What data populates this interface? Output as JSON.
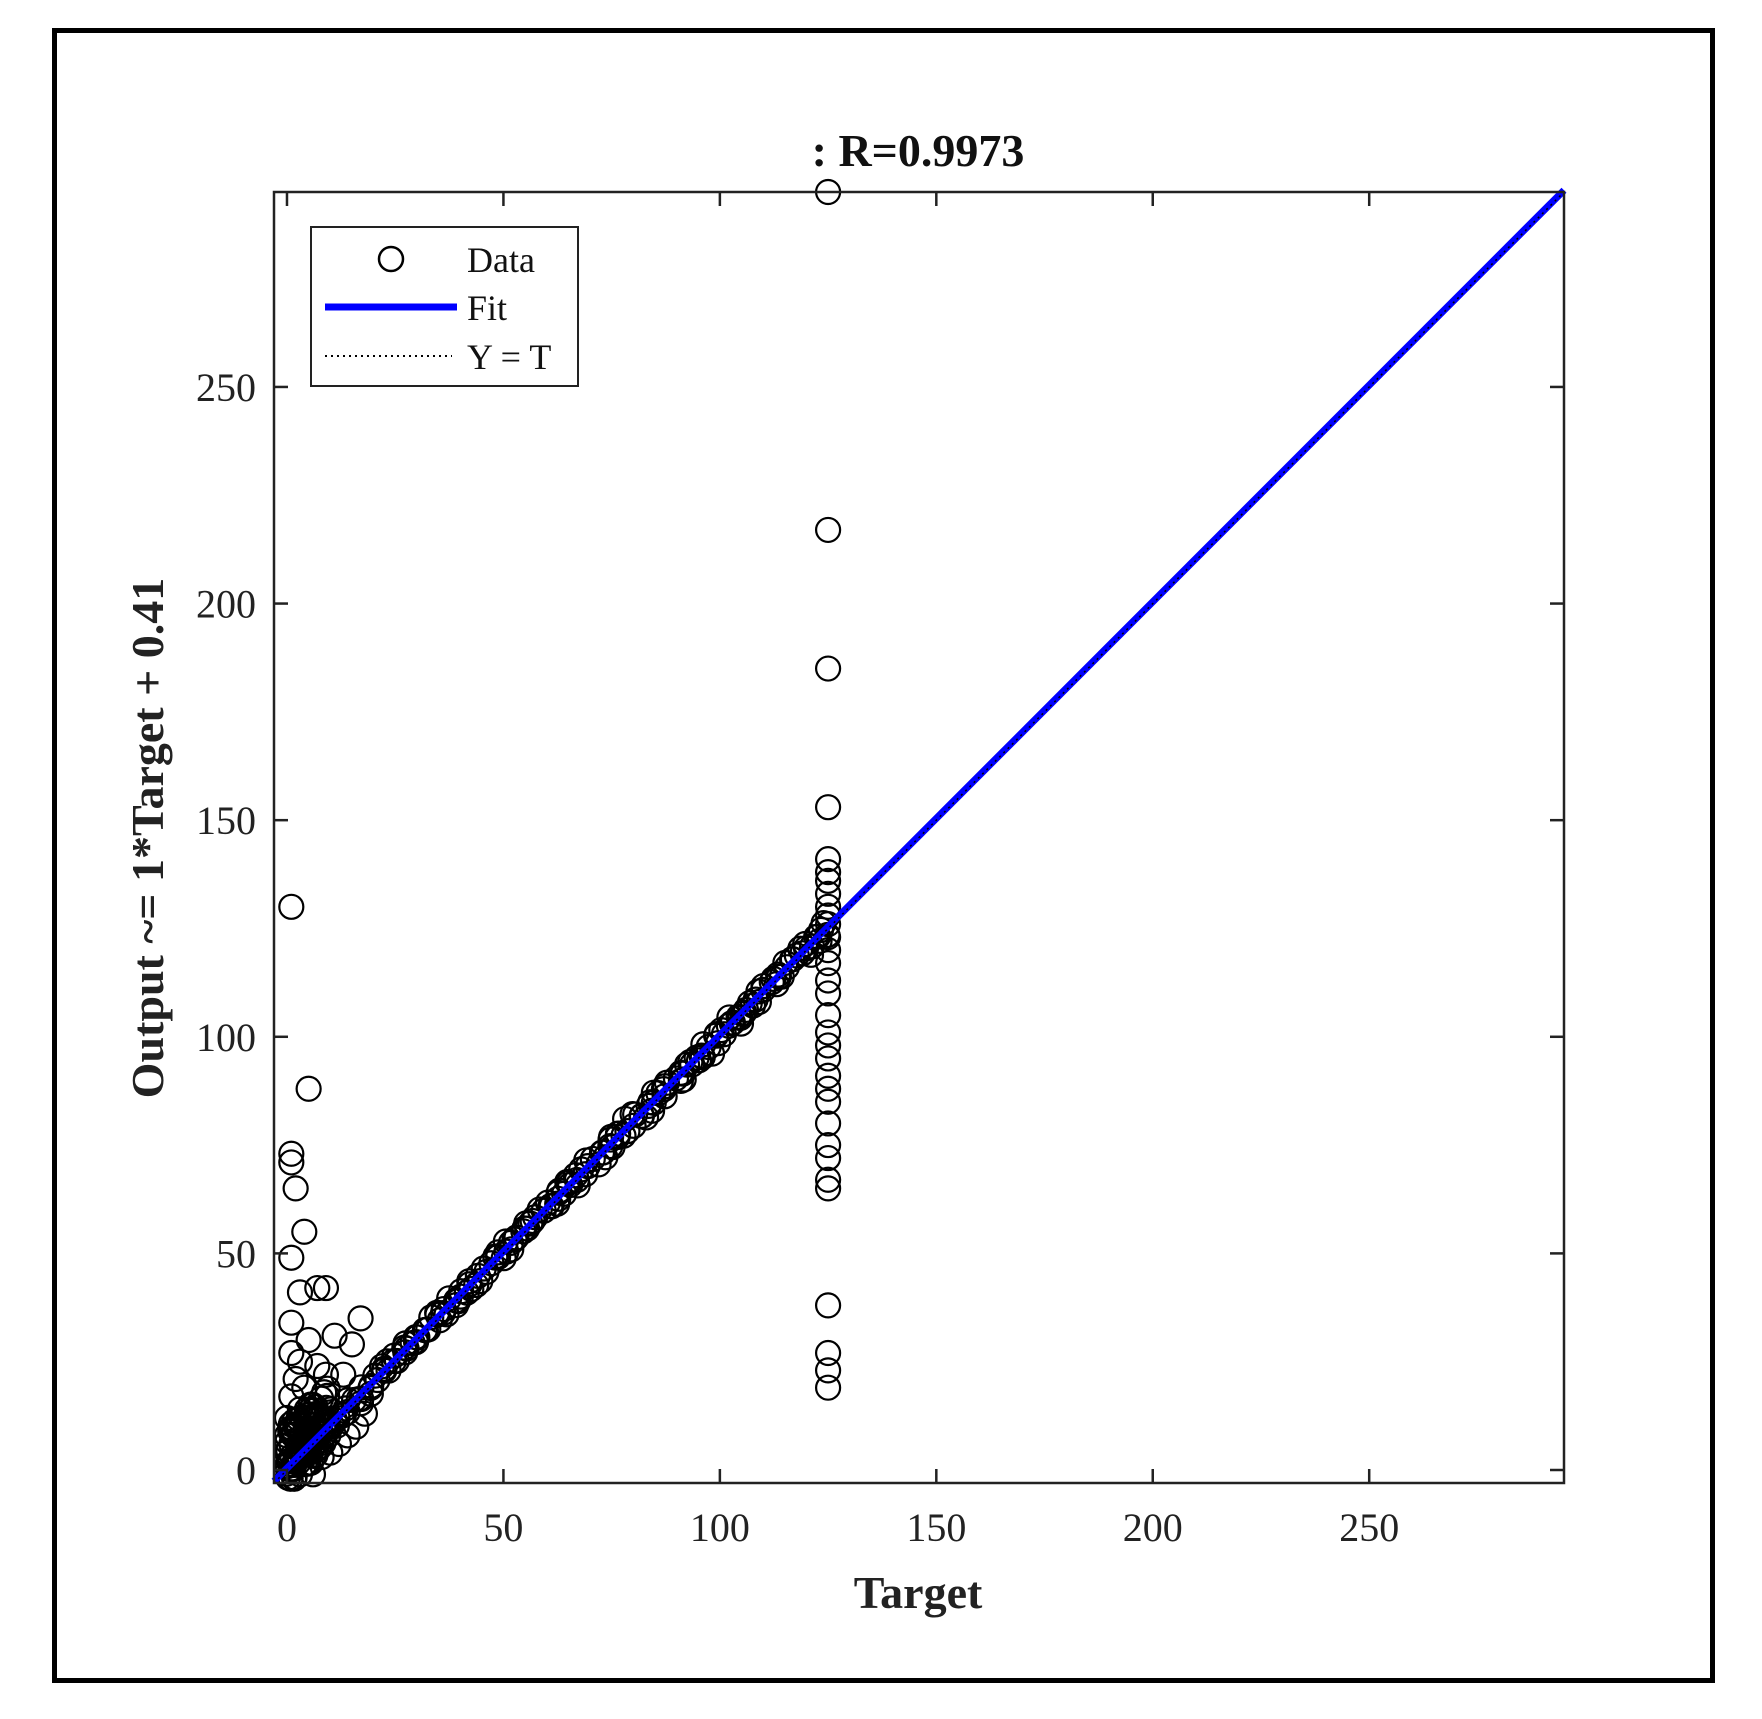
{
  "chart_data": {
    "type": "scatter",
    "title": ": R=0.9973",
    "xlabel": "Target",
    "ylabel": "Output ~= 1*Target + 0.41",
    "xlim": [
      -3,
      295
    ],
    "ylim": [
      -3,
      295
    ],
    "xticks": [
      0,
      50,
      100,
      150,
      200,
      250
    ],
    "yticks": [
      0,
      50,
      100,
      150,
      200,
      250
    ],
    "grid": false,
    "legend": {
      "position": "top-left",
      "entries": [
        {
          "label": "Data",
          "style": "circle-marker"
        },
        {
          "label": "Fit",
          "style": "solid-line"
        },
        {
          "label": "Y = T",
          "style": "dotted-line"
        }
      ]
    },
    "colors": {
      "data": "#000000",
      "fit": "#0000ff",
      "identity": "#000000"
    },
    "fit": {
      "slope": 1,
      "intercept": 0.41
    },
    "series": [
      {
        "name": "Data",
        "points": [
          [
            125,
            295
          ],
          [
            125,
            217
          ],
          [
            125,
            185
          ],
          [
            125,
            153
          ],
          [
            125,
            141
          ],
          [
            125,
            138
          ],
          [
            125,
            136
          ],
          [
            125,
            133
          ],
          [
            125,
            130
          ],
          [
            125,
            128
          ],
          [
            125,
            126
          ],
          [
            125,
            123
          ],
          [
            125,
            120
          ],
          [
            125,
            117
          ],
          [
            125,
            113
          ],
          [
            125,
            110
          ],
          [
            125,
            105
          ],
          [
            125,
            101
          ],
          [
            125,
            98
          ],
          [
            125,
            95
          ],
          [
            125,
            91
          ],
          [
            125,
            88
          ],
          [
            125,
            85
          ],
          [
            125,
            80
          ],
          [
            125,
            75
          ],
          [
            125,
            72
          ],
          [
            125,
            67
          ],
          [
            125,
            65
          ],
          [
            125,
            38
          ],
          [
            125,
            27
          ],
          [
            125,
            23
          ],
          [
            125,
            19
          ],
          [
            1,
            130
          ],
          [
            5,
            88
          ],
          [
            1,
            73
          ],
          [
            1,
            71
          ],
          [
            2,
            65
          ],
          [
            4,
            55
          ],
          [
            1,
            49
          ],
          [
            3,
            41
          ],
          [
            7,
            42
          ],
          [
            9,
            42
          ],
          [
            17,
            35
          ],
          [
            1,
            34
          ],
          [
            11,
            31
          ],
          [
            5,
            30
          ],
          [
            15,
            29
          ],
          [
            1,
            27
          ],
          [
            3,
            25
          ],
          [
            7,
            24
          ],
          [
            9,
            22
          ],
          [
            2,
            21
          ],
          [
            13,
            22
          ],
          [
            4,
            19
          ],
          [
            1,
            17
          ],
          [
            6,
            15
          ],
          [
            3,
            14
          ],
          [
            10,
            14
          ],
          [
            0,
            12
          ],
          [
            2,
            10
          ],
          [
            5,
            9
          ],
          [
            0,
            8
          ],
          [
            1,
            6
          ],
          [
            3,
            5
          ],
          [
            0,
            4
          ],
          [
            2,
            3
          ],
          [
            0,
            1
          ],
          [
            1,
            0
          ],
          [
            3,
            -1
          ],
          [
            6,
            -1
          ],
          [
            8,
            3
          ],
          [
            10,
            4
          ],
          [
            12,
            6
          ],
          [
            14,
            8
          ],
          [
            16,
            10
          ],
          [
            18,
            13
          ]
        ]
      }
    ]
  }
}
